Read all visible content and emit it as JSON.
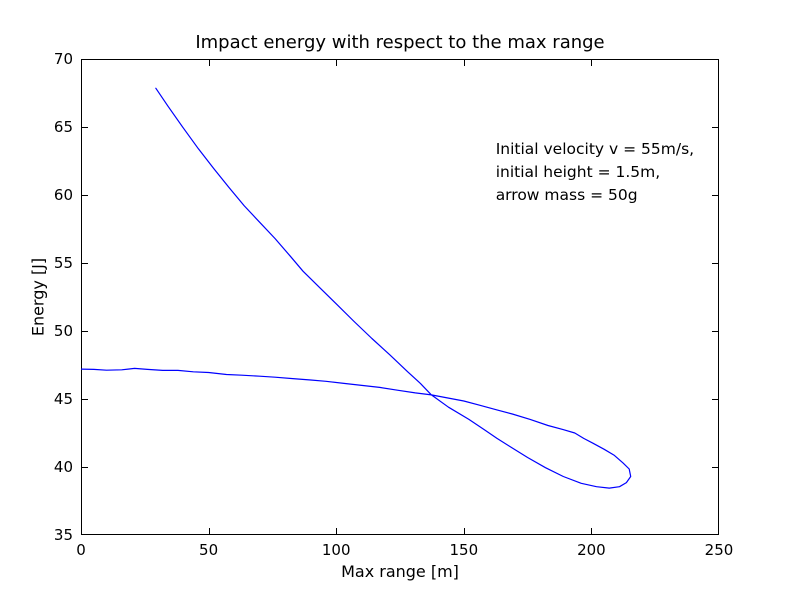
{
  "figure": {
    "background_color": "#ffffff",
    "axes_color": "#000000",
    "text_color": "#000000"
  },
  "chart_data": {
    "type": "line",
    "title": "Impact energy with respect to the max range",
    "xlabel": "Max range [m]",
    "ylabel": "Energy [J]",
    "xlim": [
      0,
      250
    ],
    "ylim": [
      35,
      70
    ],
    "xticks": [
      0,
      50,
      100,
      150,
      200,
      250
    ],
    "yticks": [
      35,
      40,
      45,
      50,
      55,
      60,
      65,
      70
    ],
    "grid": false,
    "legend": null,
    "line_color": "#0000ff",
    "annotation": {
      "lines": [
        "Initial velocity v = 55m/s,",
        "initial height = 1.5m,",
        "arrow mass = 50g"
      ],
      "x": 162.5,
      "y": 64.2
    },
    "series": [
      {
        "name": "impact energy vs max range",
        "points": [
          [
            29.3,
            67.85
          ],
          [
            34,
            66.55
          ],
          [
            40,
            64.95
          ],
          [
            46,
            63.4
          ],
          [
            52,
            61.95
          ],
          [
            58,
            60.55
          ],
          [
            64,
            59.2
          ],
          [
            70,
            58.0
          ],
          [
            76,
            56.8
          ],
          [
            82,
            55.5
          ],
          [
            87,
            54.4
          ],
          [
            94,
            53.1
          ],
          [
            100,
            52.0
          ],
          [
            107,
            50.7
          ],
          [
            114,
            49.45
          ],
          [
            121,
            48.25
          ],
          [
            128,
            47.0
          ],
          [
            133,
            46.15
          ],
          [
            137.3,
            45.3
          ],
          [
            144,
            44.4
          ],
          [
            152,
            43.5
          ],
          [
            158,
            42.75
          ],
          [
            163,
            42.1
          ],
          [
            169,
            41.4
          ],
          [
            175,
            40.7
          ],
          [
            182,
            39.95
          ],
          [
            189,
            39.3
          ],
          [
            196,
            38.8
          ],
          [
            202,
            38.55
          ],
          [
            207,
            38.45
          ],
          [
            211,
            38.55
          ],
          [
            213.7,
            38.85
          ],
          [
            215.4,
            39.3
          ],
          [
            214.8,
            39.85
          ],
          [
            212.4,
            40.3
          ],
          [
            209,
            40.85
          ],
          [
            205,
            41.3
          ],
          [
            200.6,
            41.75
          ],
          [
            197,
            42.1
          ],
          [
            193.5,
            42.5
          ],
          [
            188.9,
            42.75
          ],
          [
            183,
            43.05
          ],
          [
            176,
            43.5
          ],
          [
            169,
            43.9
          ],
          [
            163,
            44.2
          ],
          [
            156,
            44.55
          ],
          [
            150,
            44.85
          ],
          [
            143,
            45.1
          ],
          [
            137.3,
            45.3
          ],
          [
            131,
            45.45
          ],
          [
            124,
            45.65
          ],
          [
            117,
            45.85
          ],
          [
            110,
            46.0
          ],
          [
            103,
            46.15
          ],
          [
            96,
            46.3
          ],
          [
            90,
            46.4
          ],
          [
            83,
            46.5
          ],
          [
            76,
            46.6
          ],
          [
            70,
            46.68
          ],
          [
            63,
            46.75
          ],
          [
            57,
            46.8
          ],
          [
            50,
            46.95
          ],
          [
            44,
            47.0
          ],
          [
            38,
            47.1
          ],
          [
            32,
            47.1
          ],
          [
            26,
            47.18
          ],
          [
            21,
            47.25
          ],
          [
            16,
            47.15
          ],
          [
            10,
            47.12
          ],
          [
            5,
            47.18
          ],
          [
            0,
            47.2
          ]
        ]
      }
    ]
  }
}
